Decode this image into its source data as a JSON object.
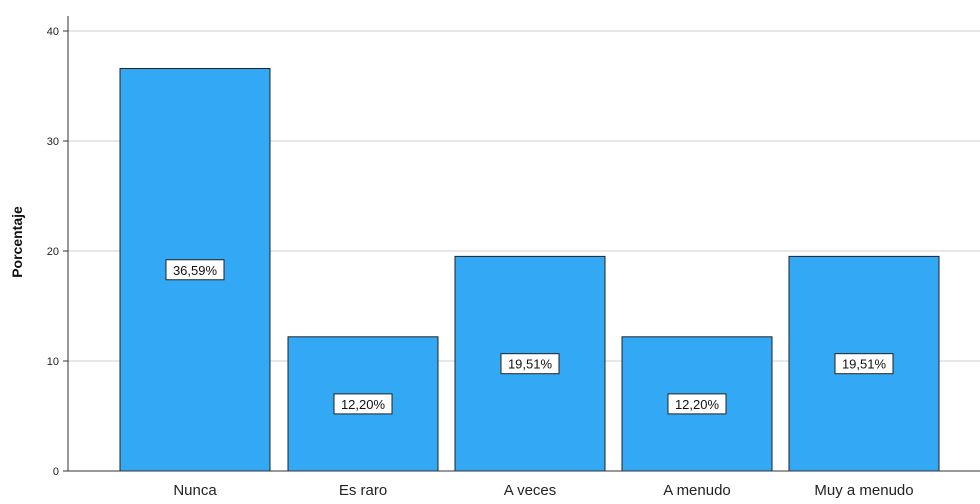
{
  "chart_data": {
    "type": "bar",
    "categories": [
      "Nunca",
      "Es raro",
      "A veces",
      "A menudo",
      "Muy a menudo"
    ],
    "values": [
      36.59,
      12.2,
      19.51,
      12.2,
      19.51
    ],
    "data_labels": [
      "36,59%",
      "12,20%",
      "19,51%",
      "12,20%",
      "19,51%"
    ],
    "title": "",
    "xlabel": "",
    "ylabel": "Porcentaje",
    "ylim": [
      0,
      40
    ],
    "yticks": [
      0,
      10,
      20,
      30,
      40
    ],
    "ytick_labels": [
      "0",
      "10",
      "20",
      "30",
      "40"
    ],
    "grid": true,
    "colors": {
      "bar_fill": "#33a8f5",
      "bar_stroke": "#222222",
      "grid": "#cfcfcf",
      "axis": "#333333"
    }
  }
}
